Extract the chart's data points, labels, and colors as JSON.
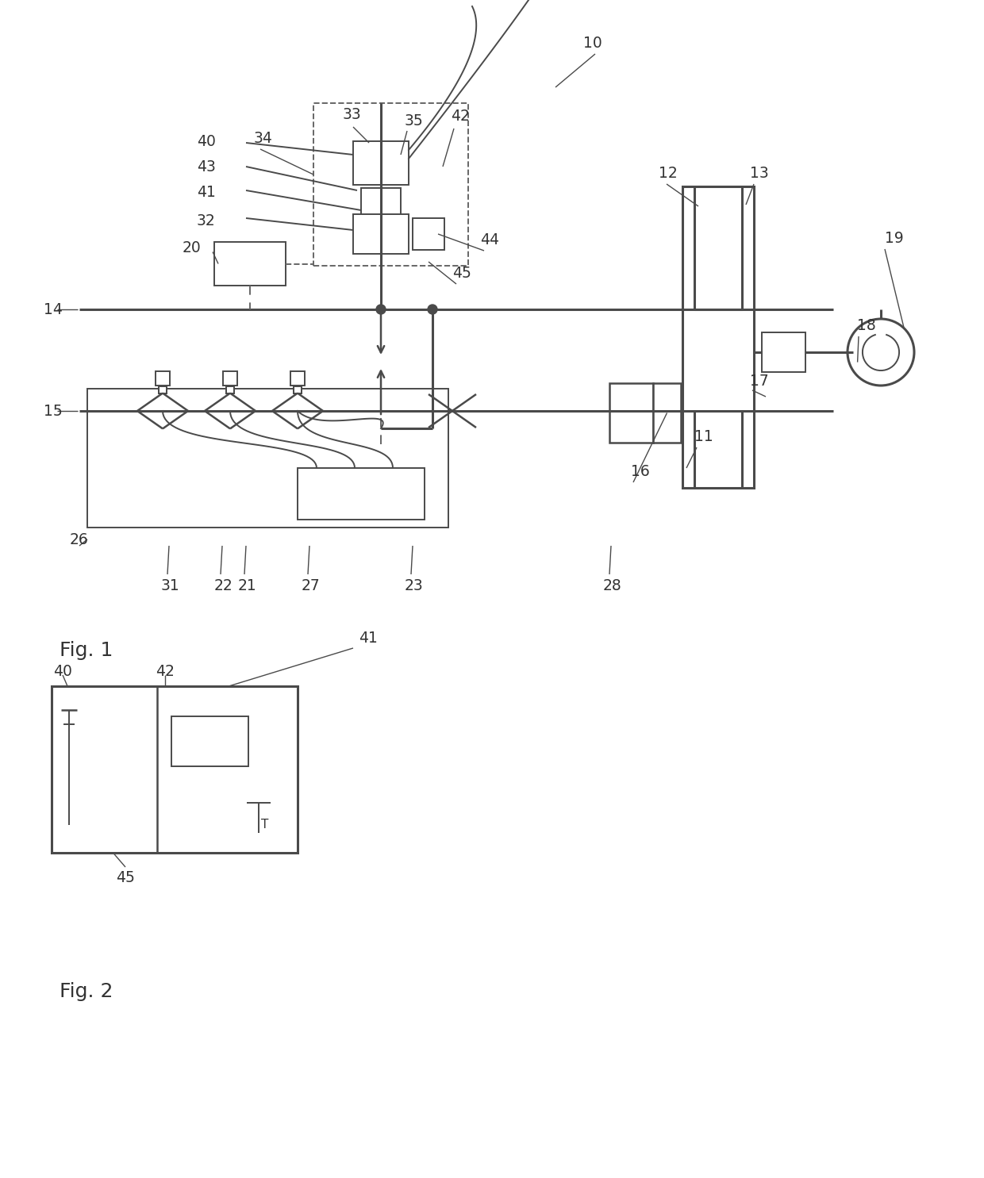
{
  "bg_color": "#ffffff",
  "line_color": "#4a4a4a",
  "fig1_label": "Fig. 1",
  "fig2_label": "Fig. 2"
}
